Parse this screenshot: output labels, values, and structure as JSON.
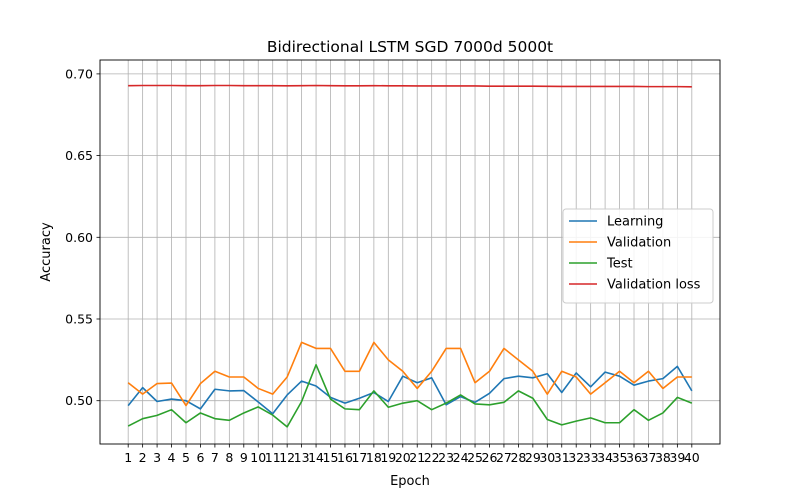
{
  "chart_data": {
    "type": "line",
    "title": "Bidirectional LSTM SGD 7000d 5000t",
    "xlabel": "Epoch",
    "ylabel": "Accuracy",
    "x": [
      1,
      2,
      3,
      4,
      5,
      6,
      7,
      8,
      9,
      10,
      11,
      12,
      13,
      14,
      15,
      16,
      17,
      18,
      19,
      20,
      21,
      22,
      23,
      24,
      25,
      26,
      27,
      28,
      29,
      30,
      31,
      32,
      33,
      34,
      35,
      36,
      37,
      38,
      39,
      40
    ],
    "ylim": [
      0.4735,
      0.7085
    ],
    "yticks": [
      0.5,
      0.55,
      0.6,
      0.65,
      0.7
    ],
    "ytick_labels": [
      "0.50",
      "0.55",
      "0.60",
      "0.65",
      "0.70"
    ],
    "grid": true,
    "legend_position": "center-right",
    "series": [
      {
        "name": "Learning",
        "color": "#1f77b4",
        "values": [
          0.497,
          0.508,
          0.4995,
          0.501,
          0.5,
          0.495,
          0.507,
          0.506,
          0.5062,
          0.4992,
          0.492,
          0.5035,
          0.512,
          0.509,
          0.502,
          0.4985,
          0.5015,
          0.505,
          0.4995,
          0.515,
          0.511,
          0.514,
          0.4975,
          0.5025,
          0.499,
          0.5045,
          0.5135,
          0.515,
          0.514,
          0.5165,
          0.505,
          0.517,
          0.5085,
          0.5175,
          0.515,
          0.5095,
          0.512,
          0.5135,
          0.521,
          0.506
        ]
      },
      {
        "name": "Validation",
        "color": "#ff7f0e",
        "values": [
          0.511,
          0.504,
          0.5105,
          0.5108,
          0.497,
          0.5105,
          0.518,
          0.5145,
          0.5145,
          0.5075,
          0.504,
          0.5145,
          0.5357,
          0.532,
          0.532,
          0.518,
          0.518,
          0.5357,
          0.525,
          0.518,
          0.5075,
          0.518,
          0.532,
          0.532,
          0.511,
          0.518,
          0.532,
          0.525,
          0.518,
          0.504,
          0.518,
          0.5145,
          0.504,
          0.511,
          0.518,
          0.511,
          0.518,
          0.5075,
          0.5145,
          0.5145
        ]
      },
      {
        "name": "Test",
        "color": "#2ca02c",
        "values": [
          0.4845,
          0.489,
          0.491,
          0.4945,
          0.4865,
          0.4925,
          0.489,
          0.488,
          0.4925,
          0.4962,
          0.4912,
          0.484,
          0.4995,
          0.522,
          0.501,
          0.495,
          0.4945,
          0.506,
          0.496,
          0.4985,
          0.5,
          0.4945,
          0.4985,
          0.5035,
          0.498,
          0.4975,
          0.499,
          0.506,
          0.5015,
          0.4885,
          0.4852,
          0.4875,
          0.4895,
          0.4865,
          0.4865,
          0.4945,
          0.488,
          0.4925,
          0.502,
          0.4985
        ]
      },
      {
        "name": "Validation loss",
        "color": "#d62728",
        "values": [
          0.6928,
          0.6929,
          0.6929,
          0.6929,
          0.6928,
          0.6928,
          0.6929,
          0.6929,
          0.6928,
          0.6928,
          0.6928,
          0.6927,
          0.6928,
          0.6929,
          0.6928,
          0.6927,
          0.6927,
          0.6928,
          0.6927,
          0.6927,
          0.6926,
          0.6926,
          0.6926,
          0.6926,
          0.6926,
          0.6925,
          0.6925,
          0.6925,
          0.6925,
          0.6924,
          0.6923,
          0.6923,
          0.6923,
          0.6923,
          0.6923,
          0.6923,
          0.6922,
          0.6922,
          0.6922,
          0.6921
        ]
      }
    ]
  }
}
